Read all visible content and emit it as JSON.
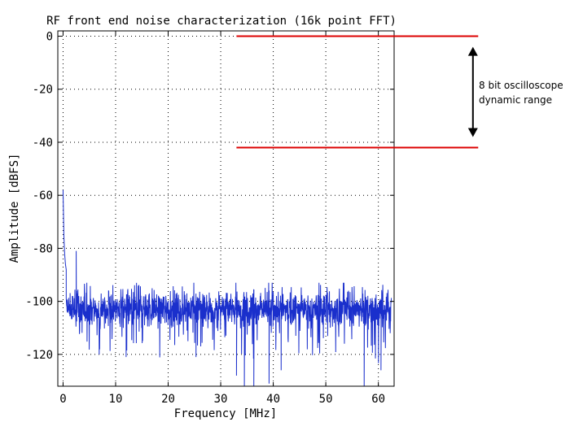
{
  "chart_data": {
    "type": "line",
    "title": "RF front end noise characterization (16k point FFT)",
    "xlabel": "Frequency [MHz]",
    "ylabel": "Amplitude [dBFS]",
    "xlim": [
      -1,
      63
    ],
    "ylim": [
      -132,
      2
    ],
    "x_ticks": [
      0,
      10,
      20,
      30,
      40,
      50,
      60
    ],
    "y_ticks": [
      0,
      -20,
      -40,
      -60,
      -80,
      -100,
      -120
    ],
    "x_tick_labels": [
      "0",
      "10",
      "20",
      "30",
      "40",
      "50",
      "60"
    ],
    "y_tick_labels": [
      "0",
      "-20",
      "-40",
      "-60",
      "-80",
      "-100",
      "-120"
    ],
    "grid": true,
    "series": [
      {
        "color": "#1a2fcc",
        "noise_floor_db": -103,
        "x_range": [
          0,
          62.5
        ],
        "points": [
          [
            0.0,
            -58
          ],
          [
            0.15,
            -75
          ],
          [
            0.3,
            -82
          ],
          [
            0.45,
            -86
          ],
          [
            0.6,
            -88
          ],
          [
            2.5,
            -81
          ],
          [
            2.6,
            -96
          ],
          [
            12,
            -121
          ],
          [
            25.3,
            -121
          ],
          [
            33,
            -128
          ],
          [
            34.5,
            -132
          ],
          [
            36.3,
            -132
          ],
          [
            39.2,
            -131
          ],
          [
            41.5,
            -126
          ],
          [
            57.3,
            -132
          ],
          [
            60.5,
            -126
          ]
        ]
      }
    ],
    "annotations": [
      {
        "type": "hline",
        "y": 0,
        "x_range": [
          33,
          79
        ],
        "color": "#dd0000"
      },
      {
        "type": "hline",
        "y": -42,
        "x_range": [
          33,
          79
        ],
        "color": "#dd0000"
      },
      {
        "type": "double-arrow",
        "x": 78,
        "y_range": [
          -4,
          -38
        ],
        "color": "#000000"
      }
    ]
  },
  "annotation_text": {
    "line1": "8 bit oscilloscope",
    "line2": "dynamic range"
  }
}
